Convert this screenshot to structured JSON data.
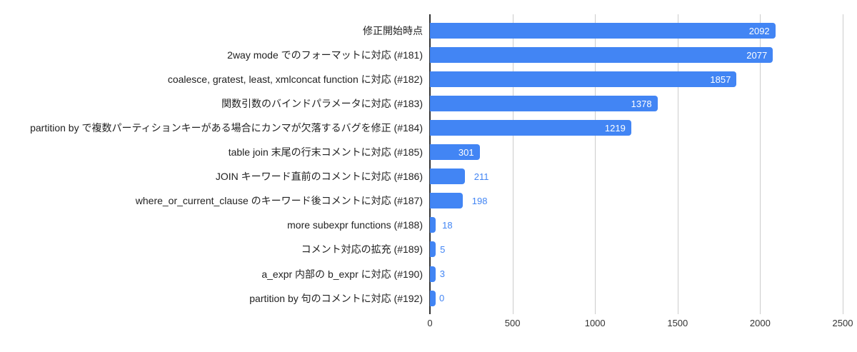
{
  "chart_data": {
    "type": "bar",
    "orientation": "horizontal",
    "title": "",
    "legend": "none",
    "grid": true,
    "categories": [
      "修正開始時点",
      "2way mode でのフォーマットに対応 (#181)",
      "coalesce, gratest, least, xmlconcat function に対応 (#182)",
      "関数引数のバインドパラメータに対応 (#183)",
      "partition by で複数パーティションキーがある場合にカンマが欠落するバグを修正 (#184)",
      "table join 末尾の行末コメントに対応 (#185)",
      "JOIN キーワード直前のコメントに対応 (#186)",
      "where_or_current_clause のキーワード後コメントに対応 (#187)",
      "more subexpr functions (#188)",
      "コメント対応の拡充 (#189)",
      "a_expr 内部の b_expr に対応 (#190)",
      "partition by 句のコメントに対応 (#192)"
    ],
    "values": [
      2092,
      2077,
      1857,
      1378,
      1219,
      301,
      211,
      198,
      18,
      5,
      3,
      0
    ],
    "xlim": [
      0,
      2500
    ],
    "x_ticks": [
      "0",
      "500",
      "1000",
      "1500",
      "2000",
      "2500"
    ],
    "x_tick_values": [
      0,
      500,
      1000,
      1500,
      2000,
      2500
    ],
    "colors": {
      "bar": "#4285f4",
      "value_label_inside": "#ffffff",
      "value_label_outside": "#4285f4",
      "gridline": "#cccccc",
      "axis_line": "#333333",
      "category_label": "#222222",
      "tick_label": "#333333",
      "background": "#ffffff"
    }
  }
}
